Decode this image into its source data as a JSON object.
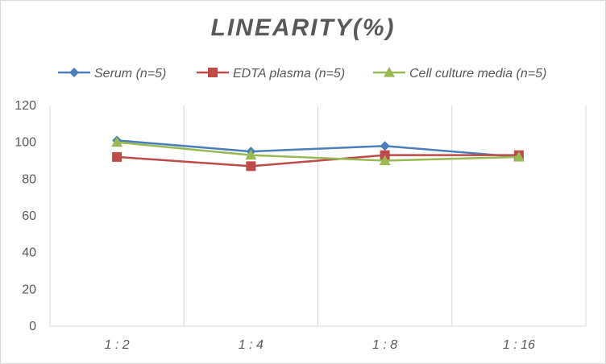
{
  "chart_data": {
    "type": "line",
    "title": "LINEARITY(%)",
    "categories": [
      "1:2",
      "1:4",
      "1:8",
      "1:16"
    ],
    "ylim": [
      0,
      120
    ],
    "yticks": [
      0,
      20,
      40,
      60,
      80,
      100,
      120
    ],
    "grid": "vertical",
    "legend_position": "top",
    "series": [
      {
        "name": "Serum (n=5)",
        "values": [
          101,
          95,
          98,
          92
        ],
        "color": "#4a7ebb",
        "marker": "diamond"
      },
      {
        "name": "EDTA plasma (n=5)",
        "values": [
          92,
          87,
          93,
          93
        ],
        "color": "#be4b48",
        "marker": "square"
      },
      {
        "name": "Cell culture media (n=5)",
        "values": [
          100,
          93,
          90,
          92
        ],
        "color": "#98b954",
        "marker": "triangle"
      }
    ]
  }
}
